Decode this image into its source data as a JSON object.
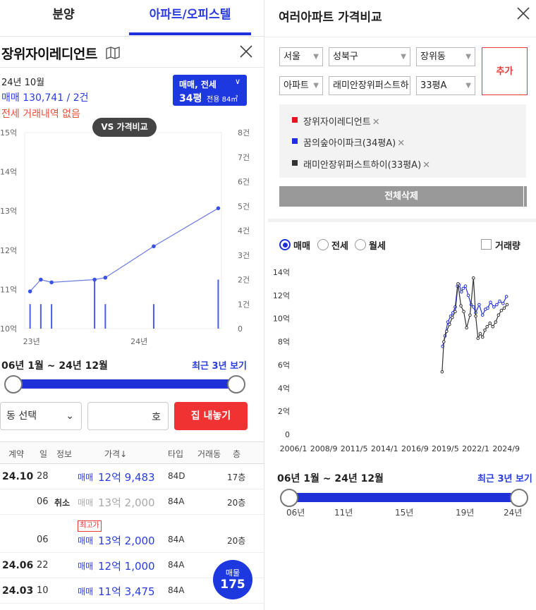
{
  "tabs": [
    {
      "label": "분양"
    },
    {
      "label": "아파트/오피스텔"
    }
  ],
  "complex": {
    "name": "장위자이레디언트",
    "date": "24년 10월",
    "trade_summary": "매매 130,741 / 2건",
    "jeonse_none": "전세 거래내역 없음",
    "type_box": {
      "line1": "매매, 전세",
      "size": "34평",
      "area": "전용 84㎡"
    }
  },
  "vs_button": "VS 가격비교",
  "left_chart": {
    "type": "line",
    "y_left_ticks": [
      "10억",
      "11억",
      "12억",
      "13억",
      "14억",
      "15억"
    ],
    "y_right_ticks": [
      "0",
      "1건",
      "2건",
      "3건",
      "4건",
      "5건",
      "6건",
      "7건",
      "8건"
    ],
    "x_ticks": [
      "23년",
      "24년"
    ],
    "ylim": [
      10,
      15
    ],
    "price_points": [
      {
        "x": 2023.0,
        "y": 10.95
      },
      {
        "x": 2023.1,
        "y": 11.25
      },
      {
        "x": 2023.2,
        "y": 11.18
      },
      {
        "x": 2023.6,
        "y": 11.25
      },
      {
        "x": 2023.7,
        "y": 11.3
      },
      {
        "x": 2024.15,
        "y": 12.1
      },
      {
        "x": 2024.75,
        "y": 13.07
      }
    ],
    "volume_bars": [
      {
        "x": 2023.0,
        "v": 1
      },
      {
        "x": 2023.1,
        "v": 1
      },
      {
        "x": 2023.2,
        "v": 1
      },
      {
        "x": 2023.6,
        "v": 2
      },
      {
        "x": 2023.7,
        "v": 1
      },
      {
        "x": 2024.15,
        "v": 1
      },
      {
        "x": 2024.75,
        "v": 2
      }
    ]
  },
  "period": {
    "label": "06년 1월 ~ 24년 12월",
    "recent": "최근 3년 보기"
  },
  "filters": {
    "select": "동 선택",
    "ho_suffix": "호",
    "sell_button": "집 내놓기"
  },
  "table": {
    "headers": [
      "계약",
      "일",
      "정보",
      "가격↓",
      "타입",
      "거래동",
      "층"
    ],
    "rows": [
      {
        "date": "24.10",
        "day": "28",
        "info": "",
        "kind": "매매",
        "price": "12억 9,483",
        "type": "84D",
        "floor": "17층",
        "grey": false,
        "badge": ""
      },
      {
        "date": "",
        "day": "06",
        "info": "취소",
        "kind": "매매",
        "price": "13억 2,000",
        "type": "84A",
        "floor": "20층",
        "grey": true,
        "badge": ""
      },
      {
        "date": "",
        "day": "06",
        "info": "",
        "kind": "매매",
        "price": "13억 2,000",
        "type": "84A",
        "floor": "20층",
        "grey": false,
        "badge": "최고가"
      },
      {
        "date": "24.06",
        "day": "22",
        "info": "",
        "kind": "매매",
        "price": "12억 1,000",
        "type": "84A",
        "floor": "",
        "grey": false,
        "badge": ""
      },
      {
        "date": "24.03",
        "day": "10",
        "info": "",
        "kind": "매매",
        "price": "11억 3,475",
        "type": "84A",
        "floor": "",
        "grey": false,
        "badge": ""
      }
    ]
  },
  "float_button": {
    "label": "매물",
    "count": "175"
  },
  "compare": {
    "title": "여러아파트 가격비교",
    "dropdowns": {
      "city": "서울",
      "district": "성북구",
      "dong": "장위동",
      "kind": "아파트",
      "apt": "래미안장위퍼스트하",
      "size": "33평A"
    },
    "add_button": "추가",
    "items": [
      {
        "name": "장위자이레디언트",
        "color": "#e8141e"
      },
      {
        "name": "꿈의숲아이파크(34평A)",
        "color": "#2030d8"
      },
      {
        "name": "래미안장위퍼스트하이(33평A)",
        "color": "#333333"
      }
    ],
    "delete_all": "전체삭제",
    "radios": [
      "매매",
      "전세",
      "월세"
    ],
    "volume_label": "거래량",
    "period": {
      "label": "06년 1월 ~ 24년 12월",
      "recent": "최근 3년 보기"
    },
    "period_ticks": [
      "06년",
      "11년",
      "15년",
      "19년",
      "24년"
    ]
  },
  "chart_data": {
    "type": "line",
    "y_ticks": [
      "0",
      "2억",
      "4억",
      "6억",
      "8억",
      "10억",
      "12억",
      "14억"
    ],
    "x_ticks": [
      "2006/1",
      "2008/9",
      "2011/5",
      "2014/1",
      "2016/9",
      "2019/5",
      "2022/1",
      "2024/9"
    ],
    "ylim": [
      0,
      14
    ],
    "xlim": [
      2006,
      2025
    ],
    "series": [
      {
        "name": "꿈의숲아이파크(34평A)",
        "color": "#2030d8",
        "points": [
          [
            2019.1,
            7.6
          ],
          [
            2019.3,
            8.5
          ],
          [
            2019.55,
            9.7
          ],
          [
            2019.8,
            10.2
          ],
          [
            2020.0,
            10.5
          ],
          [
            2020.2,
            11.0
          ],
          [
            2020.4,
            12.8
          ],
          [
            2020.55,
            12.9
          ],
          [
            2020.75,
            12.3
          ],
          [
            2020.9,
            12.6
          ],
          [
            2021.1,
            12.8
          ],
          [
            2021.35,
            12.0
          ],
          [
            2021.6,
            11.2
          ],
          [
            2021.8,
            11.0
          ],
          [
            2022.0,
            10.5
          ],
          [
            2022.3,
            11.2
          ],
          [
            2022.6,
            10.3
          ],
          [
            2022.85,
            10.8
          ],
          [
            2023.05,
            10.9
          ],
          [
            2023.3,
            11.4
          ],
          [
            2023.6,
            11.0
          ],
          [
            2023.85,
            11.2
          ],
          [
            2024.1,
            11.5
          ],
          [
            2024.4,
            11.3
          ],
          [
            2024.7,
            11.9
          ]
        ]
      },
      {
        "name": "래미안장위퍼스트하이(33평A)",
        "color": "#333333",
        "points": [
          [
            2019.05,
            5.4
          ],
          [
            2019.2,
            8.0
          ],
          [
            2019.45,
            8.9
          ],
          [
            2019.7,
            9.5
          ],
          [
            2019.95,
            10.1
          ],
          [
            2020.2,
            10.6
          ],
          [
            2020.45,
            13.0
          ],
          [
            2020.7,
            11.1
          ],
          [
            2020.95,
            10.6
          ],
          [
            2021.2,
            9.2
          ],
          [
            2021.5,
            10.3
          ],
          [
            2021.8,
            13.5
          ],
          [
            2022.0,
            10.2
          ],
          [
            2022.2,
            8.3
          ],
          [
            2022.4,
            8.7
          ],
          [
            2022.6,
            8.4
          ],
          [
            2022.8,
            9.0
          ],
          [
            2023.0,
            9.3
          ],
          [
            2023.25,
            9.6
          ],
          [
            2023.5,
            9.3
          ],
          [
            2023.75,
            9.7
          ],
          [
            2024.0,
            10.3
          ],
          [
            2024.25,
            10.7
          ],
          [
            2024.5,
            10.9
          ],
          [
            2024.75,
            11.2
          ]
        ]
      }
    ]
  }
}
